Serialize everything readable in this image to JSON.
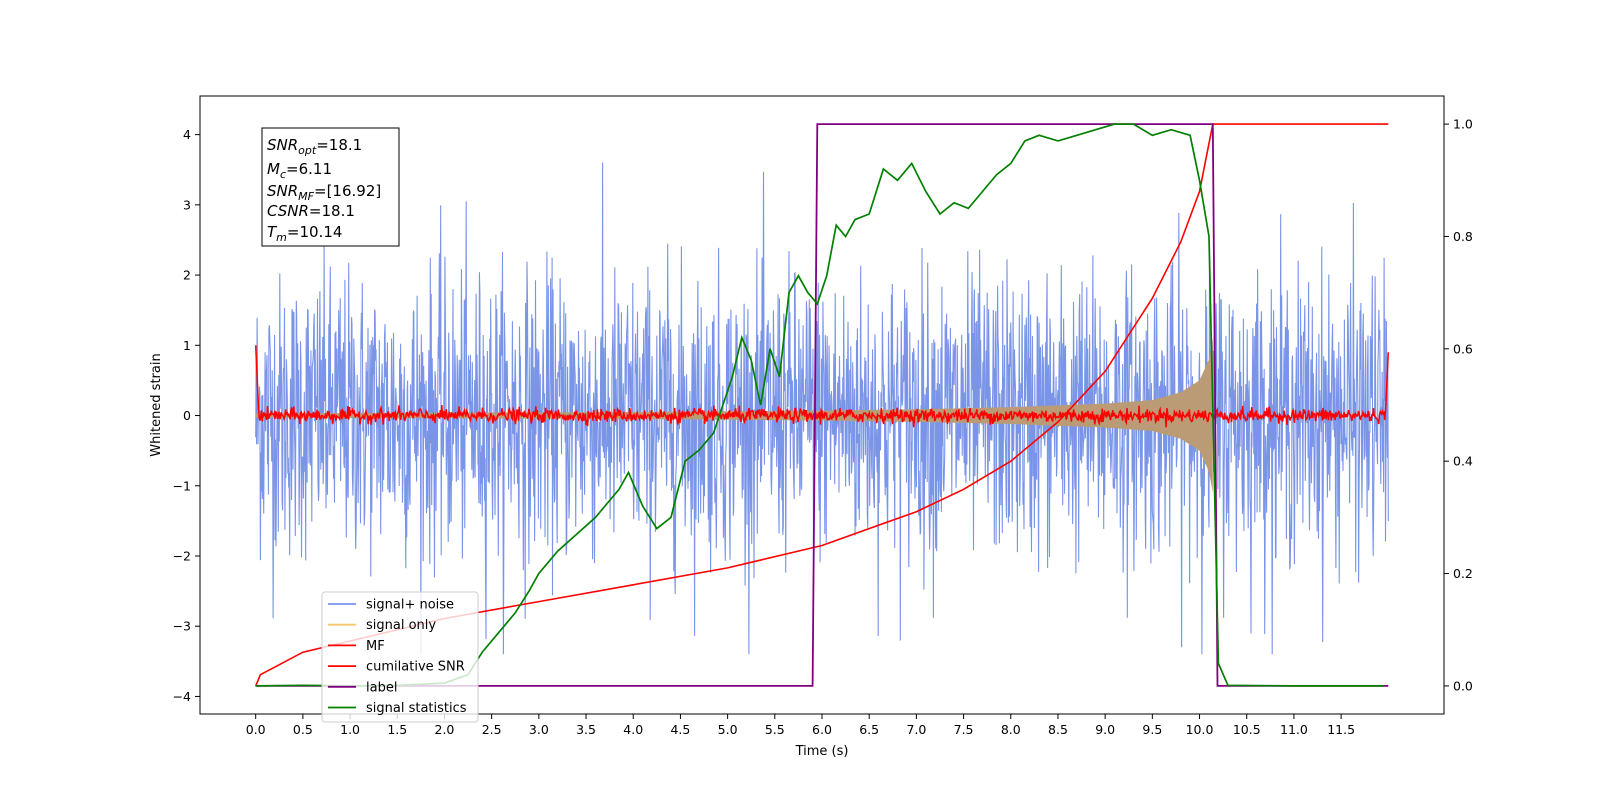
{
  "chart_data": {
    "type": "line",
    "xlabel": "Time (s)",
    "ylabel": "Whitened strain",
    "xlim": [
      -0.59,
      12.59
    ],
    "ylim": [
      -4.25,
      4.55
    ],
    "ylim_right": [
      -0.05,
      1.05
    ],
    "x_ticks": [
      "0.0",
      "0.5",
      "1.0",
      "1.5",
      "2.0",
      "2.5",
      "3.0",
      "3.5",
      "4.0",
      "4.5",
      "5.0",
      "5.5",
      "6.0",
      "6.5",
      "7.0",
      "7.5",
      "8.0",
      "8.5",
      "9.0",
      "9.5",
      "10.0",
      "10.5",
      "11.0",
      "11.5"
    ],
    "y_ticks_left": [
      "4",
      "3",
      "2",
      "1",
      "0",
      "−1",
      "−2",
      "−3",
      "−4"
    ],
    "y_ticks_right": [
      "1.0",
      "0.8",
      "0.6",
      "0.4",
      "0.2",
      "0.0"
    ],
    "grid": false,
    "legend_position": "lower-left",
    "info_box": {
      "snr_opt": "18.1",
      "mc": "6.11",
      "snr_mf": "[16.92]",
      "csnr": "18.1",
      "tm": "10.14"
    },
    "series": [
      {
        "name": "signal+ noise",
        "color": "#7a95e8",
        "axis": "left",
        "description_values": {
          "t_start": 0.0,
          "t_end": 12.0,
          "amplitude_range": [
            -3.4,
            3.9
          ]
        }
      },
      {
        "name": "signal only",
        "color": "#f5c771",
        "axis": "left",
        "envelope": {
          "t": [
            0.0,
            2.0,
            4.0,
            6.0,
            7.0,
            8.0,
            9.0,
            9.5,
            9.8,
            10.0,
            10.1,
            10.14
          ],
          "amp": [
            0.03,
            0.04,
            0.05,
            0.07,
            0.09,
            0.12,
            0.17,
            0.22,
            0.33,
            0.5,
            0.8,
            1.1
          ]
        }
      },
      {
        "name": "MF",
        "color": "#ff0000",
        "axis": "left",
        "values_note": [
          0.0,
          1.0,
          0.05
        ]
      },
      {
        "name": "cumilative SNR",
        "color": "#ff0000",
        "axis": "right",
        "x": [
          0.0,
          0.05,
          0.5,
          1.0,
          2.0,
          3.0,
          4.0,
          5.0,
          6.0,
          7.0,
          7.5,
          8.0,
          8.5,
          9.0,
          9.5,
          9.8,
          10.0,
          10.14,
          12.0
        ],
        "y": [
          0.0,
          0.02,
          0.06,
          0.08,
          0.12,
          0.15,
          0.18,
          0.21,
          0.25,
          0.31,
          0.35,
          0.4,
          0.47,
          0.56,
          0.69,
          0.79,
          0.88,
          1.0,
          1.0
        ]
      },
      {
        "name": "label",
        "color": "#800080",
        "axis": "right",
        "x": [
          0.0,
          5.9,
          5.95,
          10.14,
          10.19,
          12.0
        ],
        "y": [
          0.0,
          0.0,
          1.0,
          1.0,
          0.0,
          0.0
        ]
      },
      {
        "name": "signal statistics",
        "color": "#008000",
        "axis": "right",
        "x": [
          0.0,
          0.5,
          1.0,
          1.5,
          2.0,
          2.25,
          2.4,
          2.6,
          2.75,
          2.9,
          3.0,
          3.2,
          3.4,
          3.6,
          3.75,
          3.85,
          3.95,
          4.1,
          4.25,
          4.4,
          4.55,
          4.7,
          4.85,
          4.95,
          5.05,
          5.15,
          5.25,
          5.35,
          5.45,
          5.55,
          5.65,
          5.75,
          5.85,
          5.95,
          6.05,
          6.15,
          6.25,
          6.35,
          6.5,
          6.65,
          6.8,
          6.95,
          7.1,
          7.25,
          7.4,
          7.55,
          7.7,
          7.85,
          8.0,
          8.15,
          8.3,
          8.5,
          8.7,
          8.9,
          9.1,
          9.3,
          9.5,
          9.7,
          9.9,
          10.0,
          10.1,
          10.2,
          10.3,
          11.0,
          11.5,
          11.95
        ],
        "y": [
          0.0,
          0.001,
          0.0,
          0.001,
          0.005,
          0.02,
          0.06,
          0.1,
          0.13,
          0.17,
          0.2,
          0.24,
          0.27,
          0.3,
          0.33,
          0.35,
          0.38,
          0.32,
          0.28,
          0.3,
          0.4,
          0.42,
          0.45,
          0.5,
          0.55,
          0.62,
          0.58,
          0.5,
          0.6,
          0.55,
          0.7,
          0.73,
          0.7,
          0.68,
          0.73,
          0.82,
          0.8,
          0.83,
          0.84,
          0.92,
          0.9,
          0.93,
          0.88,
          0.84,
          0.86,
          0.85,
          0.88,
          0.91,
          0.93,
          0.97,
          0.98,
          0.97,
          0.98,
          0.99,
          1.0,
          1.0,
          0.98,
          0.99,
          0.98,
          0.9,
          0.8,
          0.04,
          0.001,
          0.0,
          0.0,
          0.0
        ]
      }
    ]
  },
  "legend": {
    "items": [
      {
        "label": "signal+ noise",
        "color": "#7a95e8"
      },
      {
        "label": "signal only",
        "color": "#f5c771"
      },
      {
        "label": "MF",
        "color": "#ff0000"
      },
      {
        "label": "cumilative SNR",
        "color": "#ff0000"
      },
      {
        "label": "label",
        "color": "#800080"
      },
      {
        "label": "signal statistics",
        "color": "#008000"
      }
    ]
  }
}
